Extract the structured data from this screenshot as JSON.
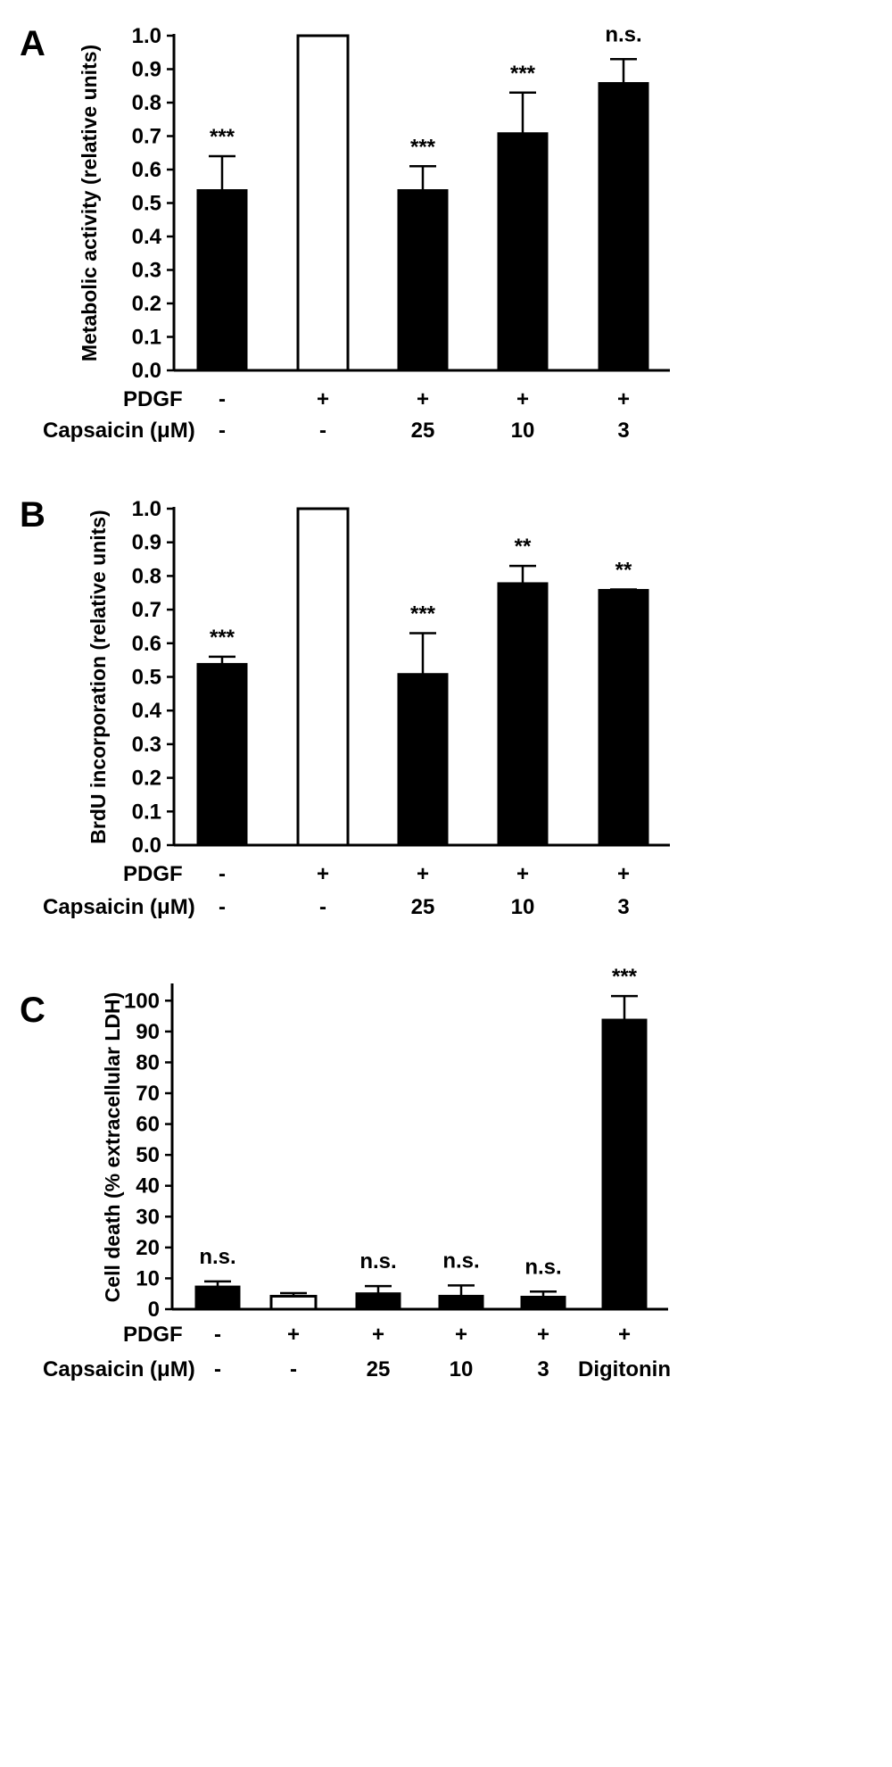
{
  "chart_data": [
    {
      "type": "bar",
      "panel": "A",
      "ylabel": "Metabolic activity (relative units)",
      "ylim": [
        0,
        1.0
      ],
      "yticks": [
        "0.0",
        "0.1",
        "0.2",
        "0.3",
        "0.4",
        "0.5",
        "0.6",
        "0.7",
        "0.8",
        "0.9",
        "1.0"
      ],
      "bars": [
        {
          "value": 0.54,
          "error": 0.1,
          "fill": "black",
          "sig": "***",
          "pdgf": "-",
          "capsaicin": "-"
        },
        {
          "value": 1.0,
          "error": 0,
          "fill": "white",
          "sig": "",
          "pdgf": "+",
          "capsaicin": "-"
        },
        {
          "value": 0.54,
          "error": 0.07,
          "fill": "black",
          "sig": "***",
          "pdgf": "+",
          "capsaicin": "25"
        },
        {
          "value": 0.71,
          "error": 0.12,
          "fill": "black",
          "sig": "***",
          "pdgf": "+",
          "capsaicin": "10"
        },
        {
          "value": 0.86,
          "error": 0.07,
          "fill": "black",
          "sig": "n.s.",
          "pdgf": "+",
          "capsaicin": "3"
        }
      ]
    },
    {
      "type": "bar",
      "panel": "B",
      "ylabel": "BrdU incorporation (relative units)",
      "ylim": [
        0,
        1.0
      ],
      "yticks": [
        "0.0",
        "0.1",
        "0.2",
        "0.3",
        "0.4",
        "0.5",
        "0.6",
        "0.7",
        "0.8",
        "0.9",
        "1.0"
      ],
      "bars": [
        {
          "value": 0.54,
          "error": 0.02,
          "fill": "black",
          "sig": "***",
          "pdgf": "-",
          "capsaicin": "-"
        },
        {
          "value": 1.0,
          "error": 0,
          "fill": "white",
          "sig": "",
          "pdgf": "+",
          "capsaicin": "-"
        },
        {
          "value": 0.51,
          "error": 0.12,
          "fill": "black",
          "sig": "***",
          "pdgf": "+",
          "capsaicin": "25"
        },
        {
          "value": 0.78,
          "error": 0.05,
          "fill": "black",
          "sig": "**",
          "pdgf": "+",
          "capsaicin": "10"
        },
        {
          "value": 0.76,
          "error": 0.0,
          "fill": "black",
          "sig": "**",
          "pdgf": "+",
          "capsaicin": "3"
        }
      ]
    },
    {
      "type": "bar",
      "panel": "C",
      "ylabel": "Cell death (% extracellular LDH)",
      "ylim": [
        0,
        105
      ],
      "yticks": [
        "0",
        "10",
        "20",
        "30",
        "40",
        "50",
        "60",
        "70",
        "80",
        "90",
        "100"
      ],
      "bars": [
        {
          "value": 7.5,
          "error": 1.5,
          "fill": "black",
          "sig": "n.s.",
          "pdgf": "-",
          "capsaicin": "-"
        },
        {
          "value": 4.2,
          "error": 1.0,
          "fill": "white",
          "sig": "",
          "pdgf": "+",
          "capsaicin": "-"
        },
        {
          "value": 5.3,
          "error": 2.2,
          "fill": "black",
          "sig": "n.s.",
          "pdgf": "+",
          "capsaicin": "25"
        },
        {
          "value": 4.5,
          "error": 3.2,
          "fill": "black",
          "sig": "n.s.",
          "pdgf": "+",
          "capsaicin": "10"
        },
        {
          "value": 4.2,
          "error": 1.5,
          "fill": "black",
          "sig": "n.s.",
          "pdgf": "+",
          "capsaicin": "3"
        },
        {
          "value": 94,
          "error": 7.5,
          "fill": "black",
          "sig": "***",
          "pdgf": "+",
          "capsaicin": "Digitonin"
        }
      ]
    }
  ],
  "row_labels": {
    "pdgf": "PDGF",
    "capsaicin": "Capsaicin (μM)"
  },
  "colors": {
    "bar_fill": "#000000",
    "control_fill": "#ffffff",
    "stroke": "#000000"
  }
}
